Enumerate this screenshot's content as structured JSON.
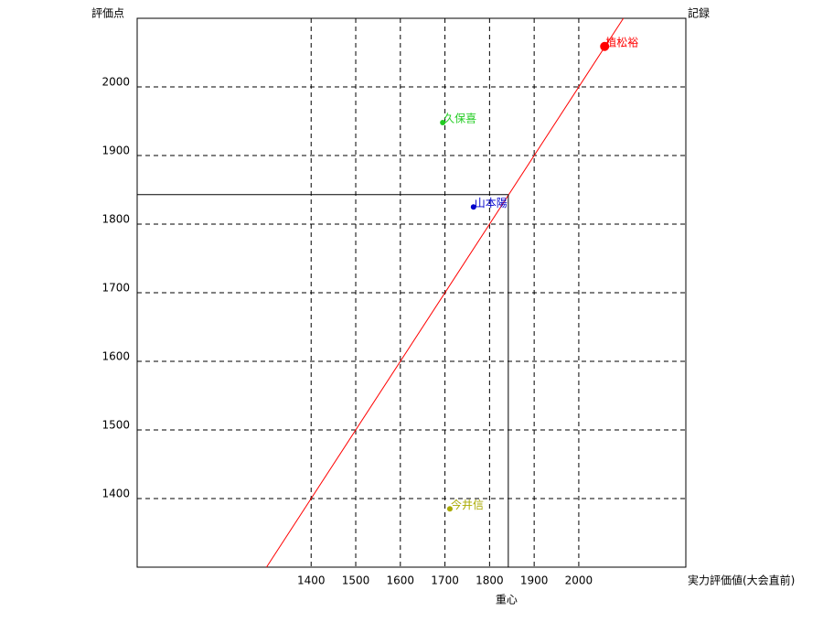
{
  "chart_data": {
    "type": "scatter",
    "x_label": "実力評価値(大会直前)",
    "y_label": "評価点",
    "y2_label": "記録",
    "xlim": [
      1010,
      2240
    ],
    "ylim": [
      1300,
      2100
    ],
    "xticks": [
      1400,
      1500,
      1600,
      1700,
      1800,
      1900,
      2000
    ],
    "yticks": [
      1400,
      1500,
      1600,
      1700,
      1800,
      1900,
      2000
    ],
    "grid": true,
    "reference_line": {
      "x": [
        1300,
        2100
      ],
      "y": [
        1300,
        2100
      ],
      "color": "#ff0000"
    },
    "centroid": {
      "label": "重心",
      "x": 1842,
      "y": 1843,
      "color": "#000000"
    },
    "series": [
      {
        "name": "植松裕",
        "color": "#ff0000",
        "marker_size": 5,
        "x": [
          2058
        ],
        "y": [
          2059
        ]
      },
      {
        "name": "久保喜",
        "color": "#22cc22",
        "marker_size": 3,
        "x": [
          1695
        ],
        "y": [
          1948
        ]
      },
      {
        "name": "山本陽",
        "color": "#0000cc",
        "marker_size": 3,
        "x": [
          1764
        ],
        "y": [
          1825
        ]
      },
      {
        "name": "今井信",
        "color": "#aaaa00",
        "marker_size": 3,
        "x": [
          1711
        ],
        "y": [
          1385
        ]
      }
    ]
  }
}
